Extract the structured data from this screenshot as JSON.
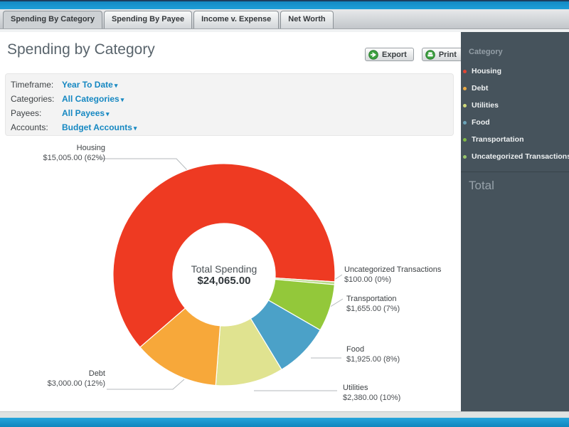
{
  "ui": {
    "caret": "▾",
    "accent_blue": "#1688c2",
    "topbar_blue": "#1b9bd3",
    "sidebar_bg": "#46535c"
  },
  "tabs": [
    {
      "label": "Spending By Category",
      "active": true
    },
    {
      "label": "Spending By Payee",
      "active": false
    },
    {
      "label": "Income v. Expense",
      "active": false
    },
    {
      "label": "Net Worth",
      "active": false
    }
  ],
  "header": {
    "title": "Spending by Category",
    "export_label": "Export",
    "print_label": "Print"
  },
  "filters": {
    "rows": [
      {
        "label": "Timeframe:",
        "value": "Year To Date"
      },
      {
        "label": "Categories:",
        "value": "All Categories"
      },
      {
        "label": "Payees:",
        "value": "All Payees"
      },
      {
        "label": "Accounts:",
        "value": "Budget Accounts"
      }
    ]
  },
  "chart_data": {
    "type": "pie",
    "subtype": "donut",
    "title": "Spending by Category",
    "center_label": "Total Spending",
    "center_value": "$24,065.00",
    "total": 24065,
    "start_angle_deg": 229.2,
    "direction": "clockwise",
    "inner_radius_ratio": 0.46,
    "legend_position": "right",
    "slices": [
      {
        "name": "Housing",
        "value": 15005,
        "display": "$15,005.00 (62%)",
        "percent": 62,
        "color": "#ee3a22"
      },
      {
        "name": "Uncategorized Transactions",
        "value": 100,
        "display": "$100.00 (0%)",
        "percent": 0,
        "color": "#b9da8a"
      },
      {
        "name": "Transportation",
        "value": 1655,
        "display": "$1,655.00 (7%)",
        "percent": 7,
        "color": "#93c83a"
      },
      {
        "name": "Food",
        "value": 1925,
        "display": "$1,925.00 (8%)",
        "percent": 8,
        "color": "#4ba1c8"
      },
      {
        "name": "Utilities",
        "value": 2380,
        "display": "$2,380.00 (10%)",
        "percent": 10,
        "color": "#e0e390"
      },
      {
        "name": "Debt",
        "value": 3000,
        "display": "$3,000.00 (12%)",
        "percent": 12,
        "color": "#f7a83a"
      }
    ]
  },
  "sidebar": {
    "header": "Category",
    "total_label": "Total",
    "items": [
      {
        "label": "Housing",
        "color": "#e04534"
      },
      {
        "label": "Debt",
        "color": "#e9a944"
      },
      {
        "label": "Utilities",
        "color": "#cfd97b"
      },
      {
        "label": "Food",
        "color": "#6ba3b8"
      },
      {
        "label": "Transportation",
        "color": "#7fb844"
      },
      {
        "label": "Uncategorized Transactions",
        "color": "#98c56b"
      }
    ]
  }
}
